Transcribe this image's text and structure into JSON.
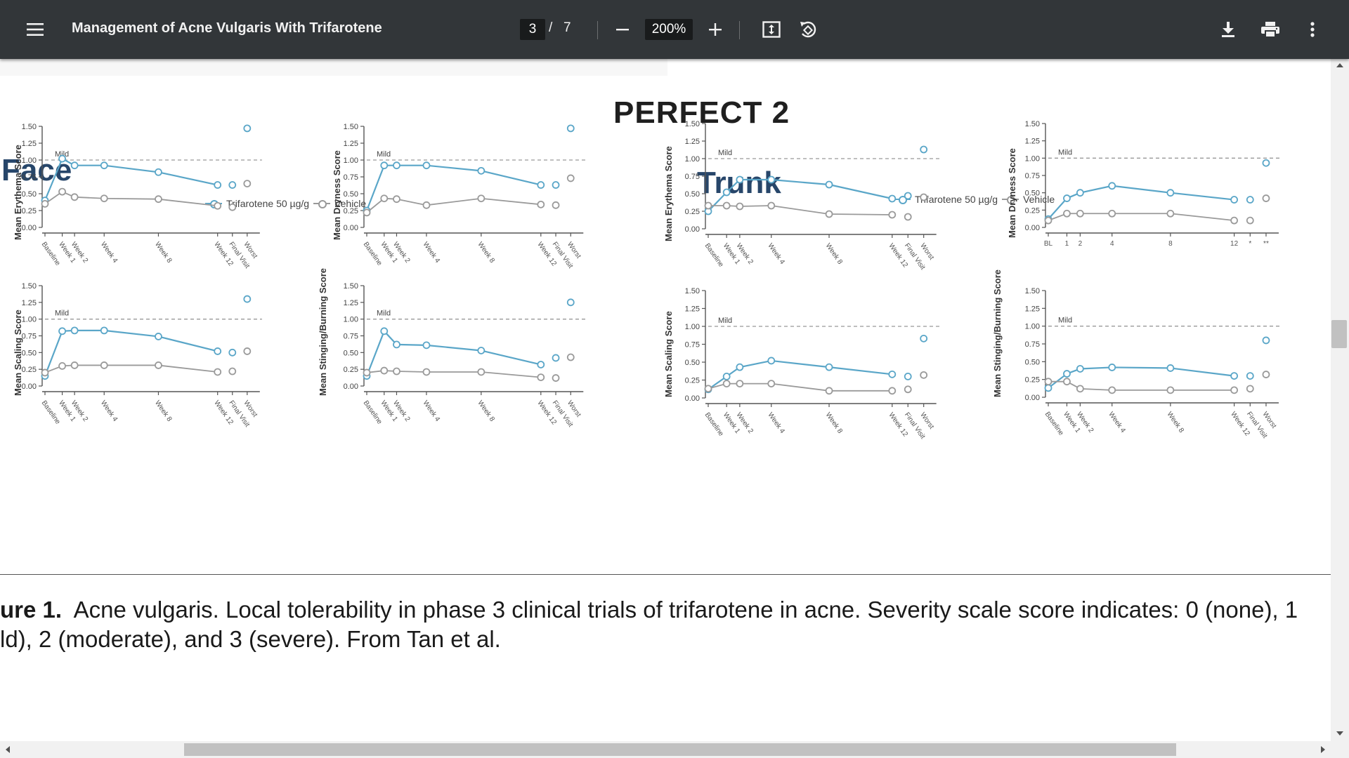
{
  "toolbar": {
    "menu_icon": "hamburger-menu-icon",
    "title": "Management of Acne Vulgaris With Trifarotene",
    "page_current": "3",
    "page_separator": "/",
    "page_total": "7",
    "zoom_value": "200%",
    "zoom_out_icon": "minus-icon",
    "zoom_in_icon": "plus-icon",
    "fit_page_icon": "fit-to-page-icon",
    "rotate_icon": "rotate-icon",
    "download_icon": "download-icon",
    "print_icon": "print-icon",
    "more_icon": "more-vertical-icon"
  },
  "figure": {
    "study_title": "PERFECT 2",
    "face_title": "Face",
    "trunk_title": "Trunk",
    "legend_trifarotene": "Trifarotene 50 µg/g",
    "legend_vehicle": "Vehicle",
    "mild_label": "Mild",
    "colors": {
      "trifarotene": "#5aa6c8",
      "vehicle": "#9a9a9a"
    }
  },
  "chart_data": [
    {
      "type": "line",
      "title": "",
      "region": "Face",
      "ylabel": "Mean Erythema Score",
      "ylim": [
        0,
        1.5
      ],
      "yticks": [
        "0.00",
        "0.25",
        "0.50",
        "0.75",
        "1.00",
        "1.25",
        "1.50"
      ],
      "categories": [
        "Baseline",
        "Week 1",
        "Week 2",
        "Week 4",
        "Week 8",
        "Week 12",
        "Final Visit",
        "Worst"
      ],
      "series": [
        {
          "name": "Trifarotene 50 µg/g",
          "values": [
            0.4,
            1.02,
            0.92,
            0.92,
            0.82,
            0.63,
            0.63,
            1.47
          ]
        },
        {
          "name": "Vehicle",
          "values": [
            0.35,
            0.53,
            0.45,
            0.43,
            0.42,
            0.32,
            0.3,
            0.65
          ]
        }
      ]
    },
    {
      "type": "line",
      "title": "",
      "region": "Face",
      "ylabel": "Mean Dryness Score",
      "ylim": [
        0,
        1.5
      ],
      "yticks": [
        "0.00",
        "0.25",
        "0.50",
        "0.75",
        "1.00",
        "1.25",
        "1.50"
      ],
      "categories": [
        "Baseline",
        "Week 1",
        "Week 2",
        "Week 4",
        "Week 8",
        "Week 12",
        "Final Visit",
        "Worst"
      ],
      "series": [
        {
          "name": "Trifarotene 50 µg/g",
          "values": [
            0.25,
            0.92,
            0.92,
            0.92,
            0.84,
            0.63,
            0.63,
            1.47
          ]
        },
        {
          "name": "Vehicle",
          "values": [
            0.22,
            0.43,
            0.42,
            0.33,
            0.43,
            0.34,
            0.33,
            0.73
          ]
        }
      ]
    },
    {
      "type": "line",
      "title": "",
      "region": "Face",
      "ylabel": "Mean Scaling Score",
      "ylim": [
        0,
        1.5
      ],
      "yticks": [
        "0.00",
        "0.25",
        "0.50",
        "0.75",
        "1.00",
        "1.25",
        "1.50"
      ],
      "categories": [
        "Baseline",
        "Week 1",
        "Week 2",
        "Week 4",
        "Week 8",
        "Week 12",
        "Final Visit",
        "Worst"
      ],
      "series": [
        {
          "name": "Trifarotene 50 µg/g",
          "values": [
            0.15,
            0.82,
            0.83,
            0.83,
            0.74,
            0.52,
            0.5,
            1.3
          ]
        },
        {
          "name": "Vehicle",
          "values": [
            0.2,
            0.3,
            0.31,
            0.31,
            0.31,
            0.21,
            0.22,
            0.52
          ]
        }
      ]
    },
    {
      "type": "line",
      "title": "",
      "region": "Face",
      "ylabel": "Mean Stinging/Burning Score",
      "ylim": [
        0,
        1.5
      ],
      "yticks": [
        "0.00",
        "0.25",
        "0.50",
        "0.75",
        "1.00",
        "1.25",
        "1.50"
      ],
      "categories": [
        "Baseline",
        "Week 1",
        "Week 2",
        "Week 4",
        "Week 8",
        "Week 12",
        "Final Visit",
        "Worst"
      ],
      "series": [
        {
          "name": "Trifarotene 50 µg/g",
          "values": [
            0.15,
            0.82,
            0.62,
            0.61,
            0.53,
            0.32,
            0.42,
            1.25
          ]
        },
        {
          "name": "Vehicle",
          "values": [
            0.2,
            0.23,
            0.22,
            0.21,
            0.21,
            0.13,
            0.12,
            0.43
          ]
        }
      ]
    },
    {
      "type": "line",
      "title": "",
      "region": "Trunk",
      "ylabel": "Mean Erythema Score",
      "ylim": [
        0,
        1.5
      ],
      "yticks": [
        "0.00",
        "0.25",
        "0.50",
        "0.75",
        "1.00",
        "1.25",
        "1.50"
      ],
      "categories": [
        "Baseline",
        "Week 1",
        "Week 2",
        "Week 4",
        "Week 8",
        "Week 12",
        "Final Visit",
        "Worst"
      ],
      "series": [
        {
          "name": "Trifarotene 50 µg/g",
          "values": [
            0.25,
            0.52,
            0.7,
            0.7,
            0.63,
            0.43,
            0.47,
            1.13
          ]
        },
        {
          "name": "Vehicle",
          "values": [
            0.33,
            0.33,
            0.32,
            0.33,
            0.21,
            0.2,
            0.17,
            0.45
          ]
        }
      ]
    },
    {
      "type": "line",
      "title": "",
      "region": "Trunk",
      "ylabel": "Mean Dryness Score",
      "ylim": [
        0,
        1.5
      ],
      "yticks": [
        "0.00",
        "0.25",
        "0.50",
        "0.75",
        "1.00",
        "1.25",
        "1.50"
      ],
      "xticks": [
        "BL",
        "1",
        "2",
        "4",
        "8",
        "12",
        "*",
        "**"
      ],
      "categories": [
        "BL",
        "1",
        "2",
        "4",
        "8",
        "12",
        "*",
        "**"
      ],
      "series": [
        {
          "name": "Trifarotene 50 µg/g",
          "values": [
            0.12,
            0.42,
            0.5,
            0.6,
            0.5,
            0.4,
            0.4,
            0.93
          ]
        },
        {
          "name": "Vehicle",
          "values": [
            0.1,
            0.2,
            0.2,
            0.2,
            0.2,
            0.1,
            0.1,
            0.42
          ]
        }
      ]
    },
    {
      "type": "line",
      "title": "",
      "region": "Trunk",
      "ylabel": "Mean Scaling Score",
      "ylim": [
        0,
        1.5
      ],
      "yticks": [
        "0.00",
        "0.25",
        "0.50",
        "0.75",
        "1.00",
        "1.25",
        "1.50"
      ],
      "categories": [
        "Baseline",
        "Week 1",
        "Week 2",
        "Week 4",
        "Week 8",
        "Week 12",
        "Final Visit",
        "Worst"
      ],
      "series": [
        {
          "name": "Trifarotene 50 µg/g",
          "values": [
            0.12,
            0.3,
            0.43,
            0.52,
            0.43,
            0.33,
            0.3,
            0.83
          ]
        },
        {
          "name": "Vehicle",
          "values": [
            0.13,
            0.2,
            0.2,
            0.2,
            0.1,
            0.1,
            0.12,
            0.32
          ]
        }
      ]
    },
    {
      "type": "line",
      "title": "",
      "region": "Trunk",
      "ylabel": "Mean Stinging/Burning Score",
      "ylim": [
        0,
        1.5
      ],
      "yticks": [
        "0.00",
        "0.25",
        "0.50",
        "0.75",
        "1.00",
        "1.25",
        "1.50"
      ],
      "categories": [
        "Baseline",
        "Week 1",
        "Week 2",
        "Week 4",
        "Week 8",
        "Week 12",
        "Final Visit",
        "Worst"
      ],
      "series": [
        {
          "name": "Trifarotene 50 µg/g",
          "values": [
            0.13,
            0.33,
            0.4,
            0.42,
            0.41,
            0.3,
            0.3,
            0.8
          ]
        },
        {
          "name": "Vehicle",
          "values": [
            0.22,
            0.22,
            0.12,
            0.1,
            0.1,
            0.1,
            0.12,
            0.32
          ]
        }
      ]
    }
  ],
  "caption": {
    "label": "ure 1.",
    "line1": "Acne vulgaris. Local tolerability in phase 3 clinical trials of trifarotene in acne. Severity scale score indicates: 0 (none), 1",
    "line2": "ld), 2 (moderate), and 3 (severe). From Tan et al."
  }
}
